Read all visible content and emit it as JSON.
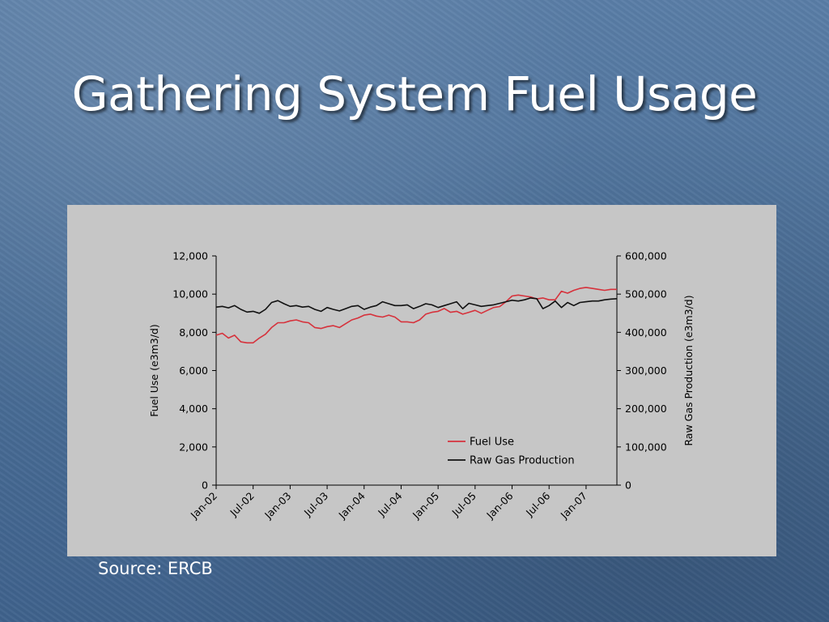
{
  "slide": {
    "title": "Gathering System Fuel Usage",
    "source": "Source: ERCB"
  },
  "colors": {
    "background": "#4a6f99",
    "panel": "#c6c6c6",
    "fuel_use": "#d6323c",
    "raw_gas": "#111111"
  },
  "chart_data": {
    "type": "line",
    "x_ticks": [
      "Jan-02",
      "Jul-02",
      "Jan-03",
      "Jul-03",
      "Jan-04",
      "Jul-04",
      "Jan-05",
      "Jul-05",
      "Jan-06",
      "Jul-06",
      "Jan-07"
    ],
    "x_start": "2002-01",
    "ylabel": "Fuel Use (e3m3/d)",
    "ylim": [
      0,
      12000
    ],
    "y_ticks": [
      "0",
      "2,000",
      "4,000",
      "6,000",
      "8,000",
      "10,000",
      "12,000"
    ],
    "y2label": "Raw Gas Production (e3m3/d)",
    "y2lim": [
      0,
      600000
    ],
    "y2_ticks": [
      "0",
      "100,000",
      "200,000",
      "300,000",
      "400,000",
      "500,000",
      "600,000"
    ],
    "legend": {
      "position": "lower-right"
    },
    "grid": false,
    "series": [
      {
        "name": "Fuel Use",
        "axis": "left",
        "color": "#d6323c",
        "values": [
          7850,
          7950,
          7700,
          7850,
          7500,
          7450,
          7450,
          7700,
          7900,
          8250,
          8500,
          8500,
          8600,
          8650,
          8550,
          8500,
          8250,
          8200,
          8300,
          8350,
          8250,
          8450,
          8650,
          8750,
          8900,
          8950,
          8850,
          8800,
          8900,
          8800,
          8550,
          8550,
          8500,
          8650,
          8950,
          9050,
          9100,
          9250,
          9050,
          9100,
          8950,
          9050,
          9150,
          9000,
          9150,
          9300,
          9350,
          9600,
          9900,
          9950,
          9900,
          9850,
          9750,
          9800,
          9700,
          9700,
          10150,
          10050,
          10200,
          10300,
          10350,
          10300,
          10250,
          10200,
          10250,
          10250
        ]
      },
      {
        "name": "Raw Gas Production",
        "axis": "right",
        "color": "#111111",
        "values": [
          466000,
          468000,
          464000,
          470000,
          460000,
          453000,
          455000,
          450000,
          460000,
          478000,
          483000,
          475000,
          468000,
          470000,
          466000,
          468000,
          460000,
          455000,
          465000,
          460000,
          456000,
          462000,
          468000,
          470000,
          460000,
          466000,
          470000,
          480000,
          475000,
          470000,
          470000,
          472000,
          462000,
          468000,
          475000,
          472000,
          465000,
          470000,
          475000,
          480000,
          462000,
          476000,
          472000,
          468000,
          470000,
          472000,
          476000,
          480000,
          484000,
          482000,
          485000,
          490000,
          488000,
          462000,
          470000,
          482000,
          465000,
          478000,
          470000,
          478000,
          480000,
          482000,
          482000,
          485000,
          487000,
          488000
        ]
      }
    ]
  }
}
